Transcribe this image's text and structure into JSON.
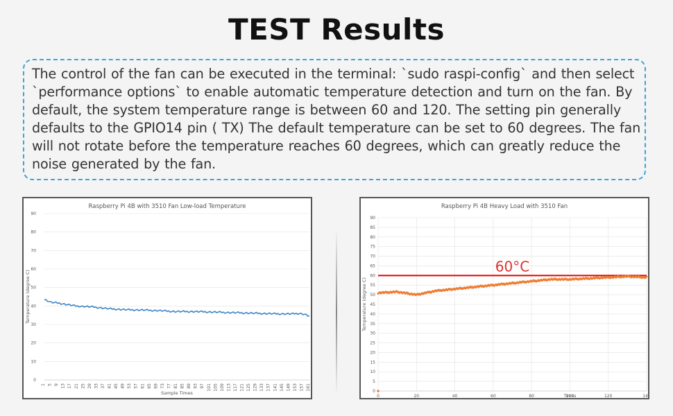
{
  "title": "TEST Results",
  "description": "The control of the fan can be executed in the terminal: `sudo raspi-config` and then select `performance options` to enable automatic temperature detection and turn on the fan. By default, the system temperature range is between 60 and 120. The setting pin generally defaults to the GPIO14 pin ( TX) The default temperature can be set to 60 degrees. The fan will not rotate before the temperature reaches 60 degrees, which can greatly reduce the noise generated by the fan.",
  "colors": {
    "accent_border": "#3aa3d8",
    "series1": "#3d85c6",
    "series2": "#ed7d31",
    "reference_line": "#e00000"
  },
  "chart_data": [
    {
      "type": "line",
      "title": "Raspberry Pi 4B with 3510 Fan Low-load Temperature",
      "xlabel": "Sample Times",
      "ylabel": "Temperature (degree C)",
      "ylim": [
        0,
        90
      ],
      "yticks": [
        0,
        10,
        20,
        30,
        40,
        50,
        60,
        70,
        80,
        90
      ],
      "xticks": [
        1,
        5,
        9,
        13,
        17,
        21,
        25,
        29,
        33,
        37,
        41,
        45,
        49,
        53,
        57,
        61,
        65,
        69,
        73,
        77,
        81,
        85,
        89,
        93,
        97,
        101,
        105,
        109,
        113,
        117,
        121,
        125,
        129,
        133,
        137,
        141,
        145,
        149,
        153,
        157,
        161
      ],
      "xlim": [
        1,
        161
      ],
      "grid": true,
      "series": [
        {
          "x": [
            1,
            5,
            10,
            20,
            30,
            40,
            50,
            60,
            70,
            80,
            90,
            100,
            110,
            120,
            130,
            140,
            150,
            155,
            158,
            161
          ],
          "values": [
            43.5,
            42,
            41.5,
            40,
            39.5,
            38.5,
            38,
            37.8,
            37.5,
            37,
            37,
            36.8,
            36.5,
            36.3,
            36,
            35.8,
            35.7,
            36,
            35.5,
            34.5
          ]
        }
      ]
    },
    {
      "type": "scatter",
      "title": "Raspberry Pi 4B Heavy Load with 3510 Fan",
      "xlabel": "Times",
      "ylabel": "Temperature (degree C)",
      "ylim": [
        0,
        90
      ],
      "xlim": [
        0,
        140
      ],
      "yticks": [
        0,
        5,
        10,
        15,
        20,
        25,
        30,
        35,
        40,
        45,
        50,
        55,
        60,
        65,
        70,
        75,
        80,
        85,
        90
      ],
      "xticks": [
        0,
        20,
        40,
        60,
        80,
        100,
        120,
        140
      ],
      "grid": true,
      "reference_line": {
        "y": 60,
        "label": "60°C"
      },
      "series": [
        {
          "x": [
            0,
            10,
            20,
            30,
            40,
            50,
            60,
            70,
            80,
            90,
            100,
            110,
            120,
            130,
            140
          ],
          "values": [
            51,
            51.5,
            50,
            52,
            53,
            54,
            55,
            56,
            57,
            58,
            58,
            58.5,
            59,
            59.5,
            59
          ]
        },
        {
          "x": [
            0
          ],
          "values": [
            0
          ]
        }
      ]
    }
  ]
}
